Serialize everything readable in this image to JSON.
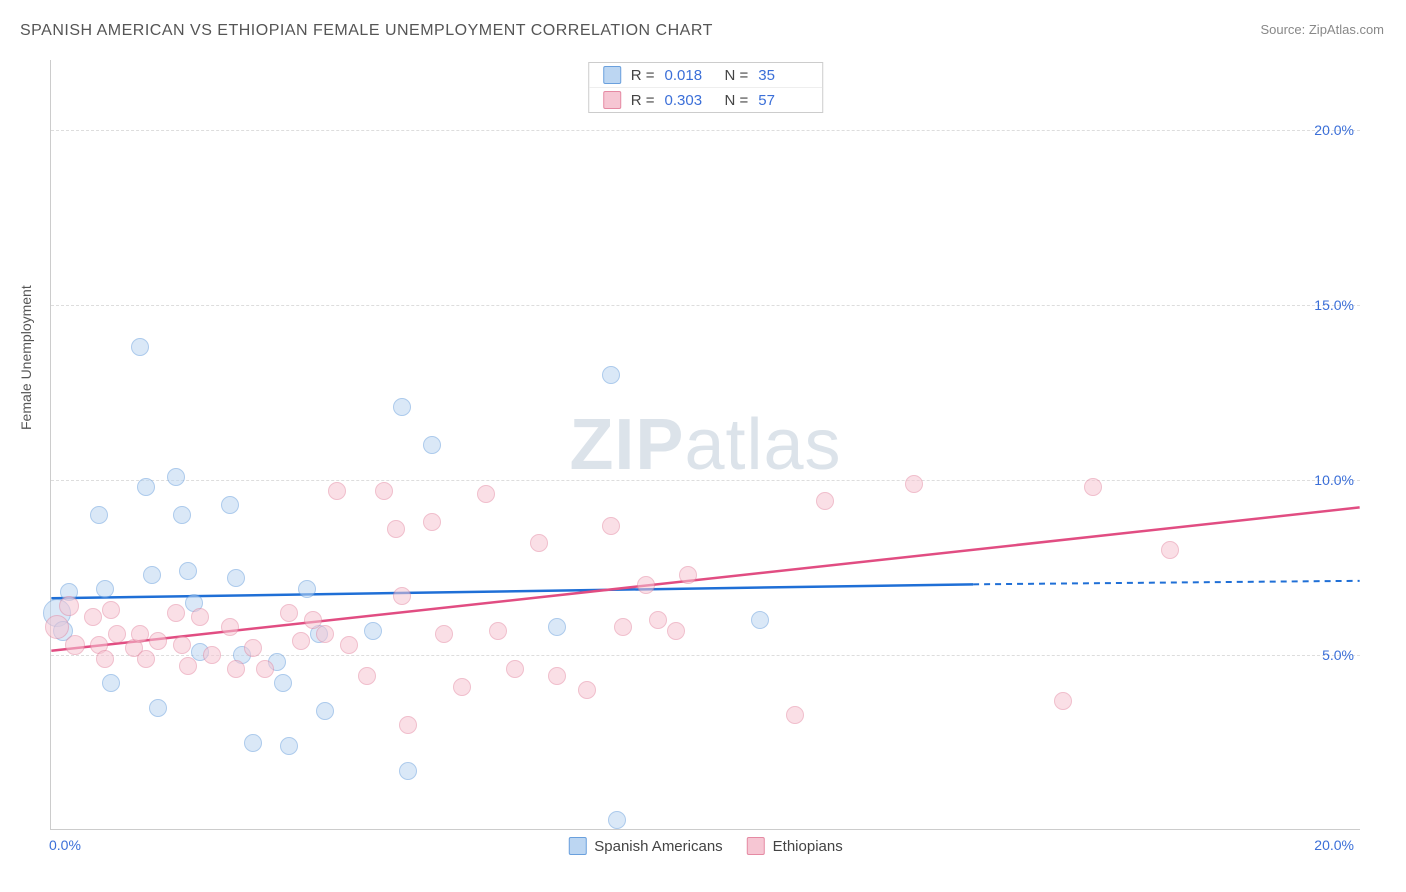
{
  "title": "SPANISH AMERICAN VS ETHIOPIAN FEMALE UNEMPLOYMENT CORRELATION CHART",
  "source": "Source: ZipAtlas.com",
  "y_label": "Female Unemployment",
  "watermark_a": "ZIP",
  "watermark_b": "atlas",
  "chart": {
    "type": "scatter",
    "background_color": "#ffffff",
    "grid_color": "#dddddd",
    "axis_color": "#cccccc",
    "xlim": [
      0,
      22
    ],
    "ylim": [
      0,
      22
    ],
    "x_ticks": [
      {
        "v": 0,
        "label": "0.0%"
      },
      {
        "v": 20,
        "label": "20.0%"
      }
    ],
    "y_ticks": [
      {
        "v": 5,
        "label": "5.0%"
      },
      {
        "v": 10,
        "label": "10.0%"
      },
      {
        "v": 15,
        "label": "15.0%"
      },
      {
        "v": 20,
        "label": "20.0%"
      }
    ],
    "series": [
      {
        "key": "spanish",
        "label": "Spanish Americans",
        "fill": "#bcd6f2",
        "stroke": "#6aa0dd",
        "line_color": "#1f6fd6",
        "marker_r": 9,
        "fill_opacity": 0.55,
        "R_label": "R  =",
        "R": "0.018",
        "N_label": "N  =",
        "N": "35",
        "regression": {
          "x1": 0,
          "y1": 6.6,
          "x2": 15.5,
          "y2": 7.0,
          "dash_to_x": 22,
          "dash_to_y": 7.1
        },
        "points": [
          [
            0.1,
            6.2,
            14
          ],
          [
            0.2,
            5.7,
            10
          ],
          [
            0.3,
            6.8,
            9
          ],
          [
            0.8,
            9.0
          ],
          [
            0.9,
            6.9
          ],
          [
            1.0,
            4.2
          ],
          [
            1.5,
            13.8
          ],
          [
            1.6,
            9.8
          ],
          [
            1.7,
            7.3
          ],
          [
            1.8,
            3.5
          ],
          [
            2.1,
            10.1
          ],
          [
            2.2,
            9.0
          ],
          [
            2.3,
            7.4
          ],
          [
            2.4,
            6.5
          ],
          [
            2.5,
            5.1
          ],
          [
            3.0,
            9.3
          ],
          [
            3.1,
            7.2
          ],
          [
            3.2,
            5.0
          ],
          [
            3.4,
            2.5
          ],
          [
            3.8,
            4.8
          ],
          [
            3.9,
            4.2
          ],
          [
            4.0,
            2.4
          ],
          [
            4.3,
            6.9
          ],
          [
            4.5,
            5.6
          ],
          [
            4.6,
            3.4
          ],
          [
            5.4,
            5.7
          ],
          [
            5.9,
            12.1
          ],
          [
            6.0,
            1.7
          ],
          [
            6.4,
            11.0
          ],
          [
            8.5,
            5.8
          ],
          [
            9.4,
            13.0
          ],
          [
            9.5,
            0.3
          ],
          [
            11.9,
            6.0
          ]
        ]
      },
      {
        "key": "ethiopian",
        "label": "Ethiopians",
        "fill": "#f6c6d3",
        "stroke": "#e58aa3",
        "line_color": "#e14d82",
        "marker_r": 9,
        "fill_opacity": 0.55,
        "R_label": "R  =",
        "R": "0.303",
        "N_label": "N  =",
        "N": "57",
        "regression": {
          "x1": 0,
          "y1": 5.1,
          "x2": 22,
          "y2": 9.2
        },
        "points": [
          [
            0.1,
            5.8,
            12
          ],
          [
            0.3,
            6.4,
            10
          ],
          [
            0.4,
            5.3,
            10
          ],
          [
            0.7,
            6.1
          ],
          [
            0.8,
            5.3
          ],
          [
            0.9,
            4.9
          ],
          [
            1.0,
            6.3
          ],
          [
            1.1,
            5.6
          ],
          [
            1.4,
            5.2
          ],
          [
            1.5,
            5.6
          ],
          [
            1.6,
            4.9
          ],
          [
            1.8,
            5.4
          ],
          [
            2.1,
            6.2
          ],
          [
            2.2,
            5.3
          ],
          [
            2.3,
            4.7
          ],
          [
            2.5,
            6.1
          ],
          [
            2.7,
            5.0
          ],
          [
            3.0,
            5.8
          ],
          [
            3.1,
            4.6
          ],
          [
            3.4,
            5.2
          ],
          [
            3.6,
            4.6
          ],
          [
            4.0,
            6.2
          ],
          [
            4.2,
            5.4
          ],
          [
            4.4,
            6.0
          ],
          [
            4.6,
            5.6
          ],
          [
            4.8,
            9.7
          ],
          [
            5.0,
            5.3
          ],
          [
            5.3,
            4.4
          ],
          [
            5.6,
            9.7
          ],
          [
            5.8,
            8.6
          ],
          [
            5.9,
            6.7
          ],
          [
            6.0,
            3.0
          ],
          [
            6.4,
            8.8
          ],
          [
            6.6,
            5.6
          ],
          [
            6.9,
            4.1
          ],
          [
            7.3,
            9.6
          ],
          [
            7.5,
            5.7
          ],
          [
            7.8,
            4.6
          ],
          [
            8.2,
            8.2
          ],
          [
            8.5,
            4.4
          ],
          [
            9.0,
            4.0
          ],
          [
            9.4,
            8.7
          ],
          [
            9.6,
            5.8
          ],
          [
            10.0,
            7.0
          ],
          [
            10.2,
            6.0
          ],
          [
            10.5,
            5.7
          ],
          [
            10.7,
            7.3
          ],
          [
            12.5,
            3.3
          ],
          [
            13.0,
            9.4
          ],
          [
            14.5,
            9.9
          ],
          [
            17.0,
            3.7
          ],
          [
            17.5,
            9.8
          ],
          [
            18.8,
            8.0
          ]
        ]
      }
    ]
  },
  "tick_fontsize": 14,
  "label_fontsize": 14,
  "title_fontsize": 16
}
